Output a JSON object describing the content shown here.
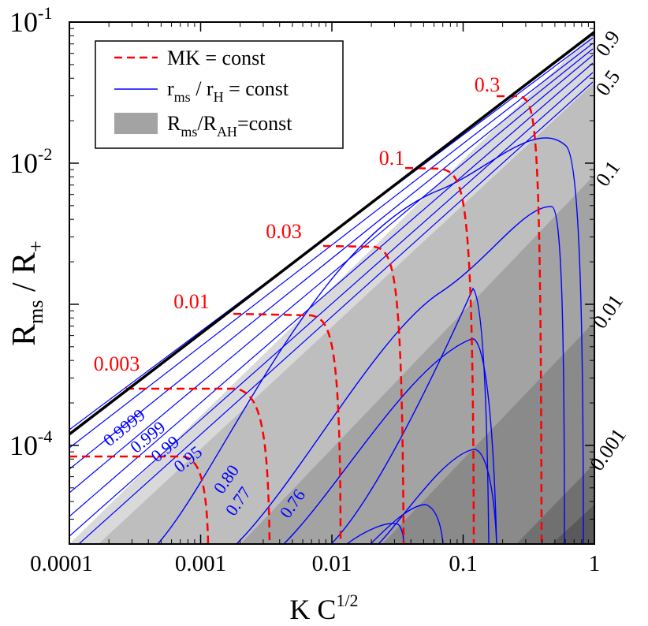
{
  "chart_data": {
    "type": "line",
    "xscale": "log",
    "yscale": "log",
    "xlim": [
      0.0001,
      1
    ],
    "ylim": [
      2e-05,
      0.1
    ],
    "xlabel": {
      "base": "K C",
      "sup": "1/2"
    },
    "ylabel": {
      "base": "R",
      "sub1": "ms",
      "mid": " / R",
      "sub2": "+"
    },
    "xticks": [
      {
        "value": 0.0001,
        "label": "0.0001"
      },
      {
        "value": 0.001,
        "label": "0.001"
      },
      {
        "value": 0.01,
        "label": "0.01"
      },
      {
        "value": 0.1,
        "label": "0.1"
      },
      {
        "value": 1,
        "label": "1"
      }
    ],
    "yticks": [
      {
        "value": 0.1,
        "base": "10",
        "exp": "-1"
      },
      {
        "value": 0.01,
        "base": "10",
        "exp": "-2"
      },
      {
        "value": 0.0001,
        "base": "10",
        "exp": "-4"
      }
    ],
    "legend": {
      "placement": "top-left",
      "entries": [
        {
          "style": "dashed-red",
          "text": "MK = const"
        },
        {
          "style": "thin-blue",
          "base": "r",
          "sub1": "ms",
          "mid": " / r",
          "sub2": "H",
          "tail": " = const"
        },
        {
          "style": "gray-band",
          "base": "R",
          "sub1": "ms",
          "mid": "/R",
          "sub2": "AH",
          "tail": "=const"
        }
      ]
    },
    "bound_curve": {
      "name": "",
      "x": [
        0.0001,
        1
      ],
      "y": [
        0.00012,
        0.085
      ]
    },
    "shaded_bands": {
      "right_labels": [
        "0.9",
        "0.5",
        "0.1",
        "0.01",
        "0.001"
      ],
      "colors": [
        "#d9d9d9",
        "#bebebe",
        "#a3a3a3",
        "#8a8a8a",
        "#707070",
        "#595959"
      ]
    },
    "mk_labels": [
      "0.003",
      "0.01",
      "0.03",
      "0.1",
      "0.3"
    ],
    "rms_labels": [
      "0.9999",
      "0.999",
      "0.99",
      "0.95",
      "0.80",
      "0.77",
      "0.76"
    ],
    "colors": {
      "mk": "#ff0000",
      "rms": "#0000ff",
      "bound": "#000000"
    }
  }
}
